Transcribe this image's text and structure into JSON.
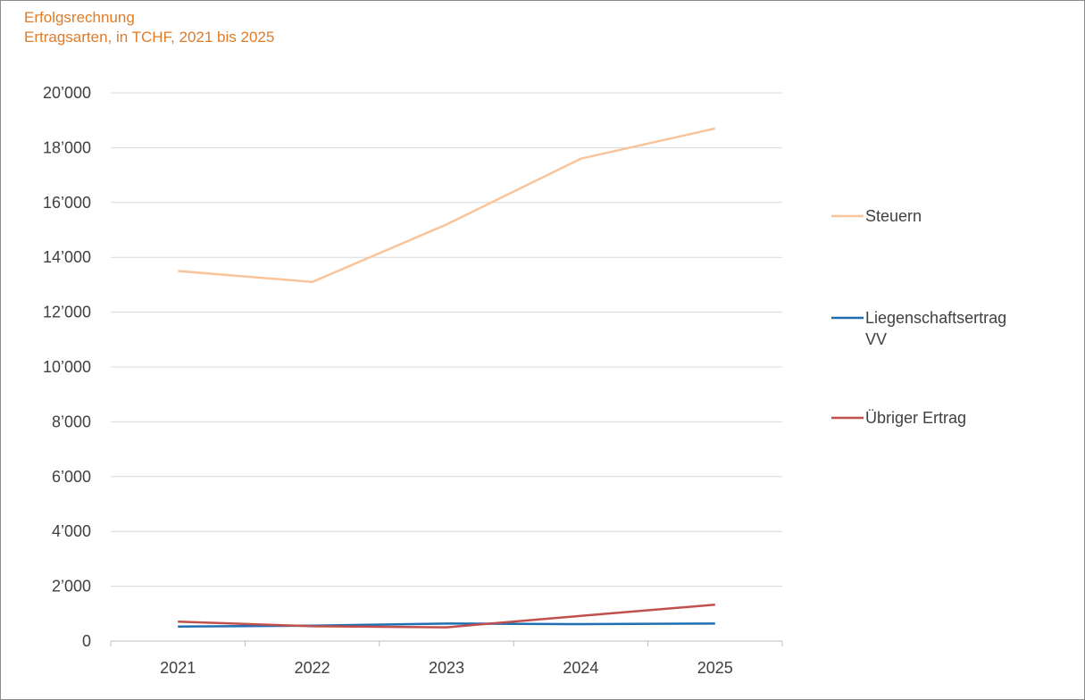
{
  "chart_data": {
    "type": "line",
    "title": "Erfolgsrechnung",
    "subtitle": "Ertragsarten, in TCHF, 2021 bis 2025",
    "xlabel": "",
    "ylabel": "",
    "categories": [
      "2021",
      "2022",
      "2023",
      "2024",
      "2025"
    ],
    "ylim": [
      0,
      20000
    ],
    "yticks": [
      0,
      2000,
      4000,
      6000,
      8000,
      10000,
      12000,
      14000,
      16000,
      18000,
      20000
    ],
    "ytick_labels": [
      "0",
      "2’000",
      "4’000",
      "6’000",
      "8’000",
      "10’000",
      "12’000",
      "14’000",
      "16’000",
      "18’000",
      "20’000"
    ],
    "grid": true,
    "legend_position": "right",
    "series": [
      {
        "name": "Steuern",
        "color": "#f9c49a",
        "values": [
          13500,
          13100,
          15200,
          17600,
          18700
        ]
      },
      {
        "name": "Liegenschaftsertrag VV",
        "color": "#1f6fb2",
        "values": [
          530,
          560,
          640,
          620,
          640
        ]
      },
      {
        "name": "Übriger Ertrag",
        "color": "#c0504d",
        "values": [
          710,
          540,
          500,
          920,
          1330
        ]
      }
    ],
    "legend_lines": [
      [
        "Steuern"
      ],
      [
        "Liegenschaftsertrag",
        "VV"
      ],
      [
        "Übriger Ertrag"
      ]
    ]
  }
}
